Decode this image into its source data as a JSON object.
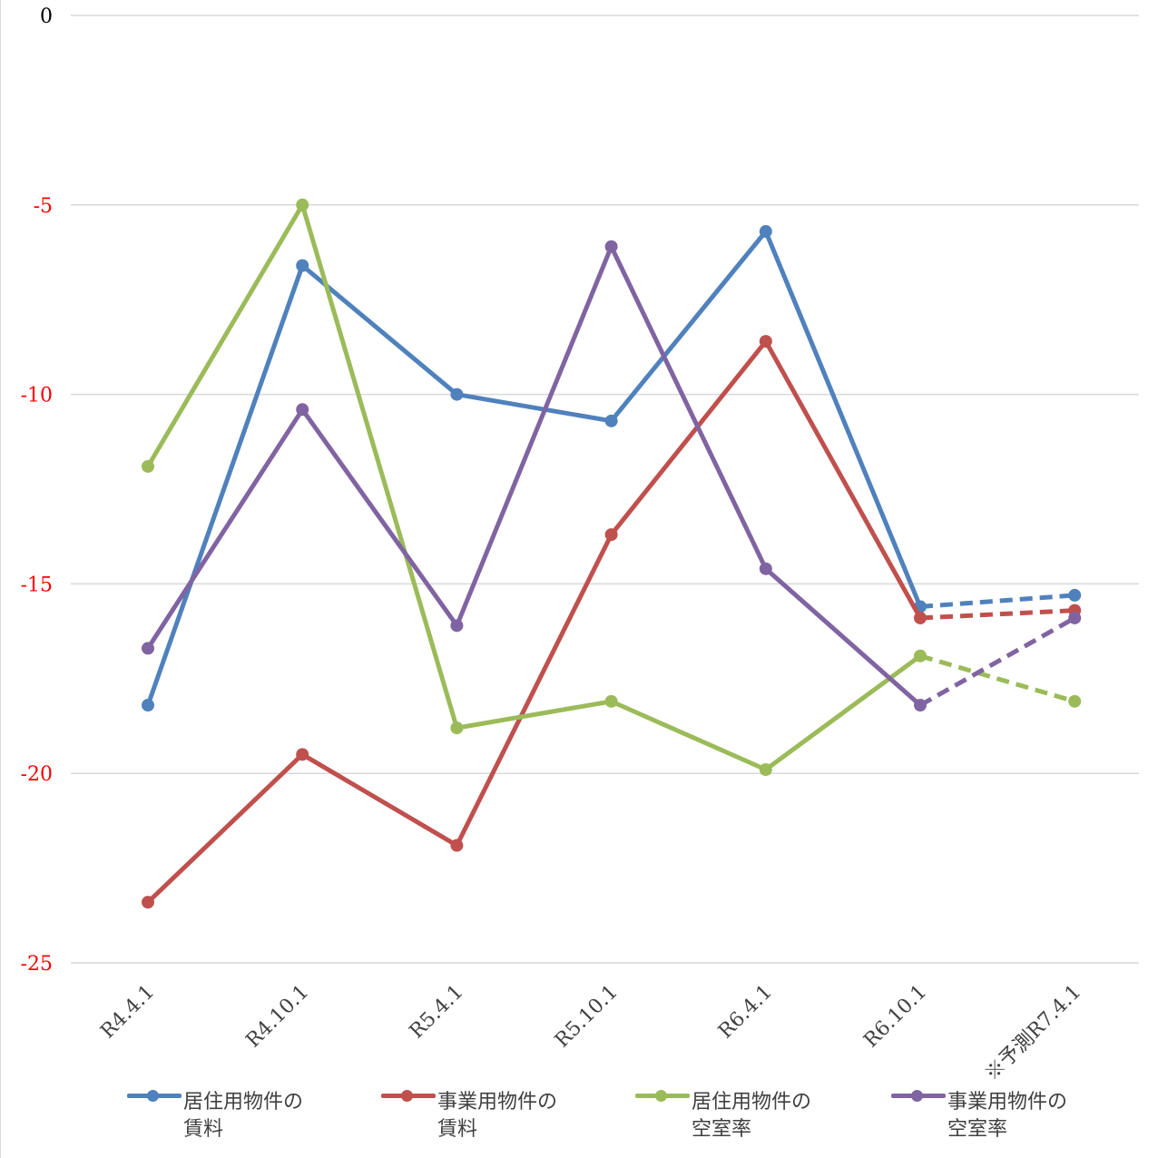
{
  "chart_data": {
    "type": "line",
    "categories": [
      "R4.4.1",
      "R4.10.1",
      "R5.4.1",
      "R5.10.1",
      "R6.4.1",
      "R6.10.1",
      "※予測R7.4.1"
    ],
    "ylim": [
      -25,
      0
    ],
    "yticks": [
      0,
      -5,
      -10,
      -15,
      -20,
      -25
    ],
    "ytick_labels": [
      "0",
      "-5",
      "-10",
      "-15",
      "-20",
      "-25"
    ],
    "ytick_colors": [
      "#000000",
      "#ff0000",
      "#ff0000",
      "#ff0000",
      "#ff0000",
      "#ff0000"
    ],
    "grid": true,
    "forecast_index": 6,
    "legend_position": "bottom",
    "series": [
      {
        "name": "居住用物件の賃料",
        "label_lines": [
          "居住用物件の",
          "賃料"
        ],
        "color": "#4f81bd",
        "values": [
          -18.2,
          -6.6,
          -10.0,
          -10.7,
          -5.7,
          -15.6,
          -15.3
        ]
      },
      {
        "name": "事業用物件の賃料",
        "label_lines": [
          "事業用物件の",
          "賃料"
        ],
        "color": "#c0504d",
        "values": [
          -23.4,
          -19.5,
          -21.9,
          -13.7,
          -8.6,
          -15.9,
          -15.7
        ]
      },
      {
        "name": "居住用物件の空室率",
        "label_lines": [
          "居住用物件の",
          "空室率"
        ],
        "color": "#9bbb59",
        "values": [
          -11.9,
          -5.0,
          -18.8,
          -18.1,
          -19.9,
          -16.9,
          -18.1
        ]
      },
      {
        "name": "事業用物件の空室率",
        "label_lines": [
          "事業用物件の",
          "空室率"
        ],
        "color": "#8064a2",
        "values": [
          -16.7,
          -10.4,
          -16.1,
          -6.1,
          -14.6,
          -18.2,
          -15.9
        ]
      }
    ]
  }
}
